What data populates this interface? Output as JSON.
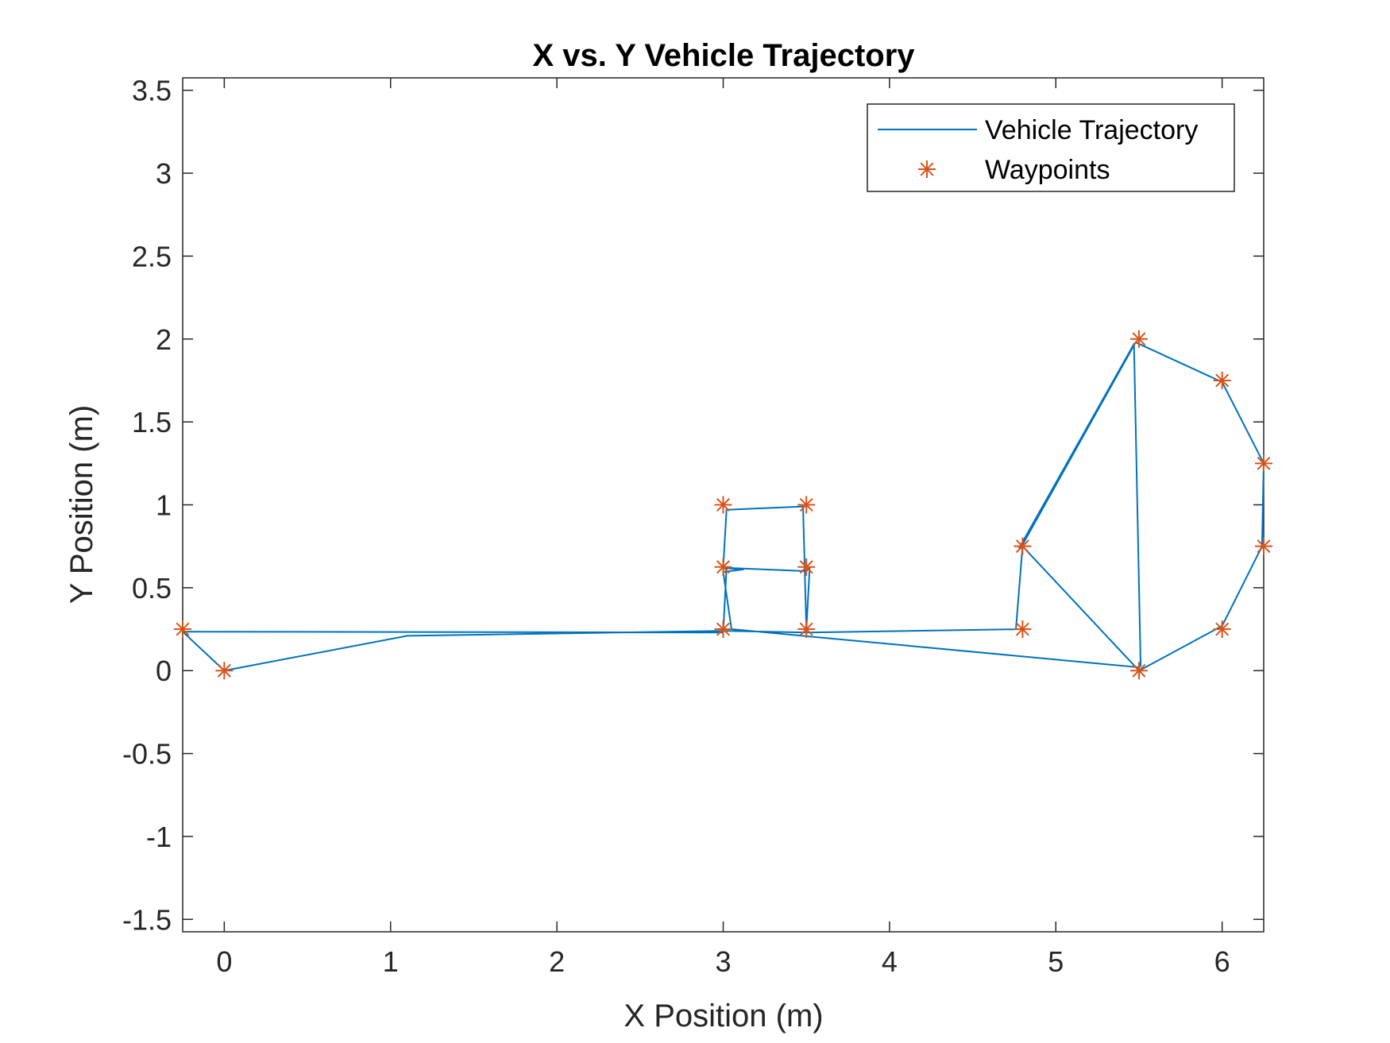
{
  "chart_data": {
    "type": "line",
    "title": "X vs. Y Vehicle Trajectory",
    "xlabel": "X Position (m)",
    "ylabel": "Y Position (m)",
    "xlim": [
      -0.25,
      6.25
    ],
    "ylim": [
      -1.575,
      3.575
    ],
    "xticks": [
      0,
      1,
      2,
      3,
      4,
      5,
      6
    ],
    "yticks": [
      -1.5,
      -1,
      -0.5,
      0,
      0.5,
      1,
      1.5,
      2,
      2.5,
      3,
      3.5
    ],
    "xtick_labels": [
      "0",
      "1",
      "2",
      "3",
      "4",
      "5",
      "6"
    ],
    "ytick_labels": [
      "-1.5",
      "-1",
      "-0.5",
      "0",
      "0.5",
      "1",
      "1.5",
      "2",
      "2.5",
      "3",
      "3.5"
    ],
    "grid": false,
    "legend_position": "top-right",
    "series": [
      {
        "name": "Vehicle Trajectory",
        "style": "line",
        "color": "#0072BD",
        "x": [
          0,
          -0.25,
          3.0,
          3.02,
          3.5,
          3.52,
          3.5,
          3.48,
          3.02,
          3.0,
          3.12,
          3.0,
          3.05,
          5.5,
          5.51,
          5.47,
          4.78,
          4.8,
          5.48,
          6.0,
          6.25,
          6.24,
          6.0,
          5.52,
          5.5,
          4.8,
          4.76,
          4.8,
          3.5,
          3.0,
          1.1,
          0
        ],
        "y": [
          0,
          0.235,
          0.23,
          0.62,
          0.6,
          0.62,
          0.25,
          0.99,
          0.97,
          0.62,
          0.61,
          0.595,
          0.25,
          0.02,
          0.03,
          1.97,
          0.74,
          0.76,
          1.98,
          1.74,
          1.25,
          0.75,
          0.27,
          0.01,
          0.0,
          0.75,
          0.25,
          0.25,
          0.23,
          0.24,
          0.21,
          0.0
        ]
      },
      {
        "name": "Waypoints",
        "style": "marker",
        "marker": "*",
        "color": "#D95319",
        "x": [
          0,
          -0.25,
          3.0,
          3.5,
          3.0,
          3.5,
          3.0,
          3.5,
          4.8,
          4.8,
          5.5,
          5.5,
          6.0,
          6.25,
          6.25,
          6.0
        ],
        "y": [
          0,
          0.25,
          0.25,
          0.25,
          0.625,
          0.625,
          1.0,
          1.0,
          0.25,
          0.75,
          0.0,
          2.0,
          1.75,
          1.25,
          0.75,
          0.25
        ]
      }
    ],
    "legend": {
      "entries": [
        "Vehicle Trajectory",
        "Waypoints"
      ]
    }
  }
}
